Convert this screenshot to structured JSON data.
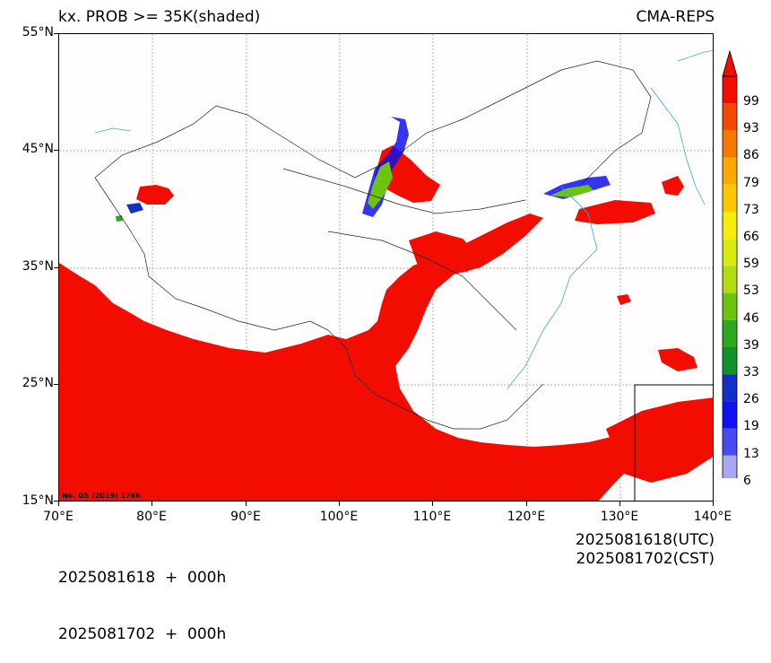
{
  "header": {
    "left_title": "kx. PROB >= 35K(shaded)",
    "right_title": "CMA-REPS"
  },
  "axes": {
    "lat_labels": [
      "55°N",
      "45°N",
      "35°N",
      "25°N",
      "15°N"
    ],
    "lon_labels": [
      "70°E",
      "80°E",
      "90°E",
      "100°E",
      "110°E",
      "120°E",
      "130°E",
      "140°E"
    ]
  },
  "colorbar": {
    "levels": [
      "99",
      "93",
      "86",
      "79",
      "73",
      "66",
      "59",
      "53",
      "46",
      "39",
      "33",
      "26",
      "19",
      "13",
      "6"
    ],
    "colors": [
      "#f20d00",
      "#f24a00",
      "#f67a00",
      "#fba800",
      "#fbc800",
      "#f8ec0a",
      "#d8ec10",
      "#b4dc12",
      "#6cc40e",
      "#2ea81e",
      "#12922a",
      "#1230c8",
      "#1010f0",
      "#4a4af2",
      "#a8a8f2"
    ],
    "over_color": "#f20d00",
    "under_color": "#ffffff"
  },
  "footer": {
    "init_time": "2025081618  +  000h",
    "init_time_cst": "2025081702  +  000h",
    "valid_utc": "2025081618(UTC)",
    "valid_cst": "2025081702(CST)"
  },
  "map": {
    "copyright": "No. GS (2019) 1786",
    "fill_color": "#f20d00",
    "water_color": "#3aa8d8"
  }
}
